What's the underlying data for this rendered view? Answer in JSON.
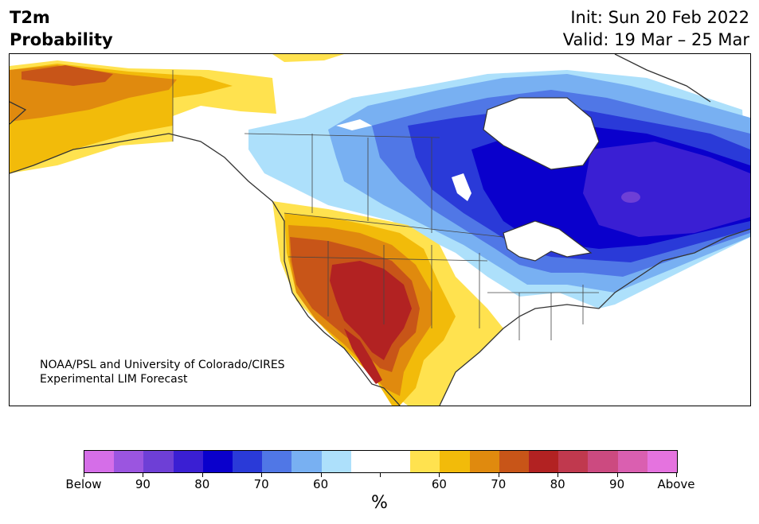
{
  "title": {
    "variable": "T2m",
    "kind": "Probability",
    "init": "Init: Sun 20 Feb 2022",
    "valid": "Valid: 19 Mar – 25 Mar"
  },
  "credit": {
    "line1": "NOAA/PSL and University of Colorado/CIRES",
    "line2": "Experimental LIM Forecast"
  },
  "colorbar": {
    "unit": "%",
    "colors": [
      "#d56ee8",
      "#9b55e0",
      "#6e3fd6",
      "#3a1fd3",
      "#0a00cc",
      "#2a3ad8",
      "#5077e6",
      "#78b0f2",
      "#ade0fb",
      "#ffffff",
      "#ffffff",
      "#ffe24f",
      "#f2bb0a",
      "#e08a0e",
      "#c85518",
      "#b22222",
      "#c0394e",
      "#cc4a80",
      "#da5fb0",
      "#e573df"
    ],
    "labels": [
      "Below",
      "90",
      "80",
      "70",
      "60",
      "",
      "60",
      "70",
      "80",
      "90",
      "Above"
    ]
  }
}
